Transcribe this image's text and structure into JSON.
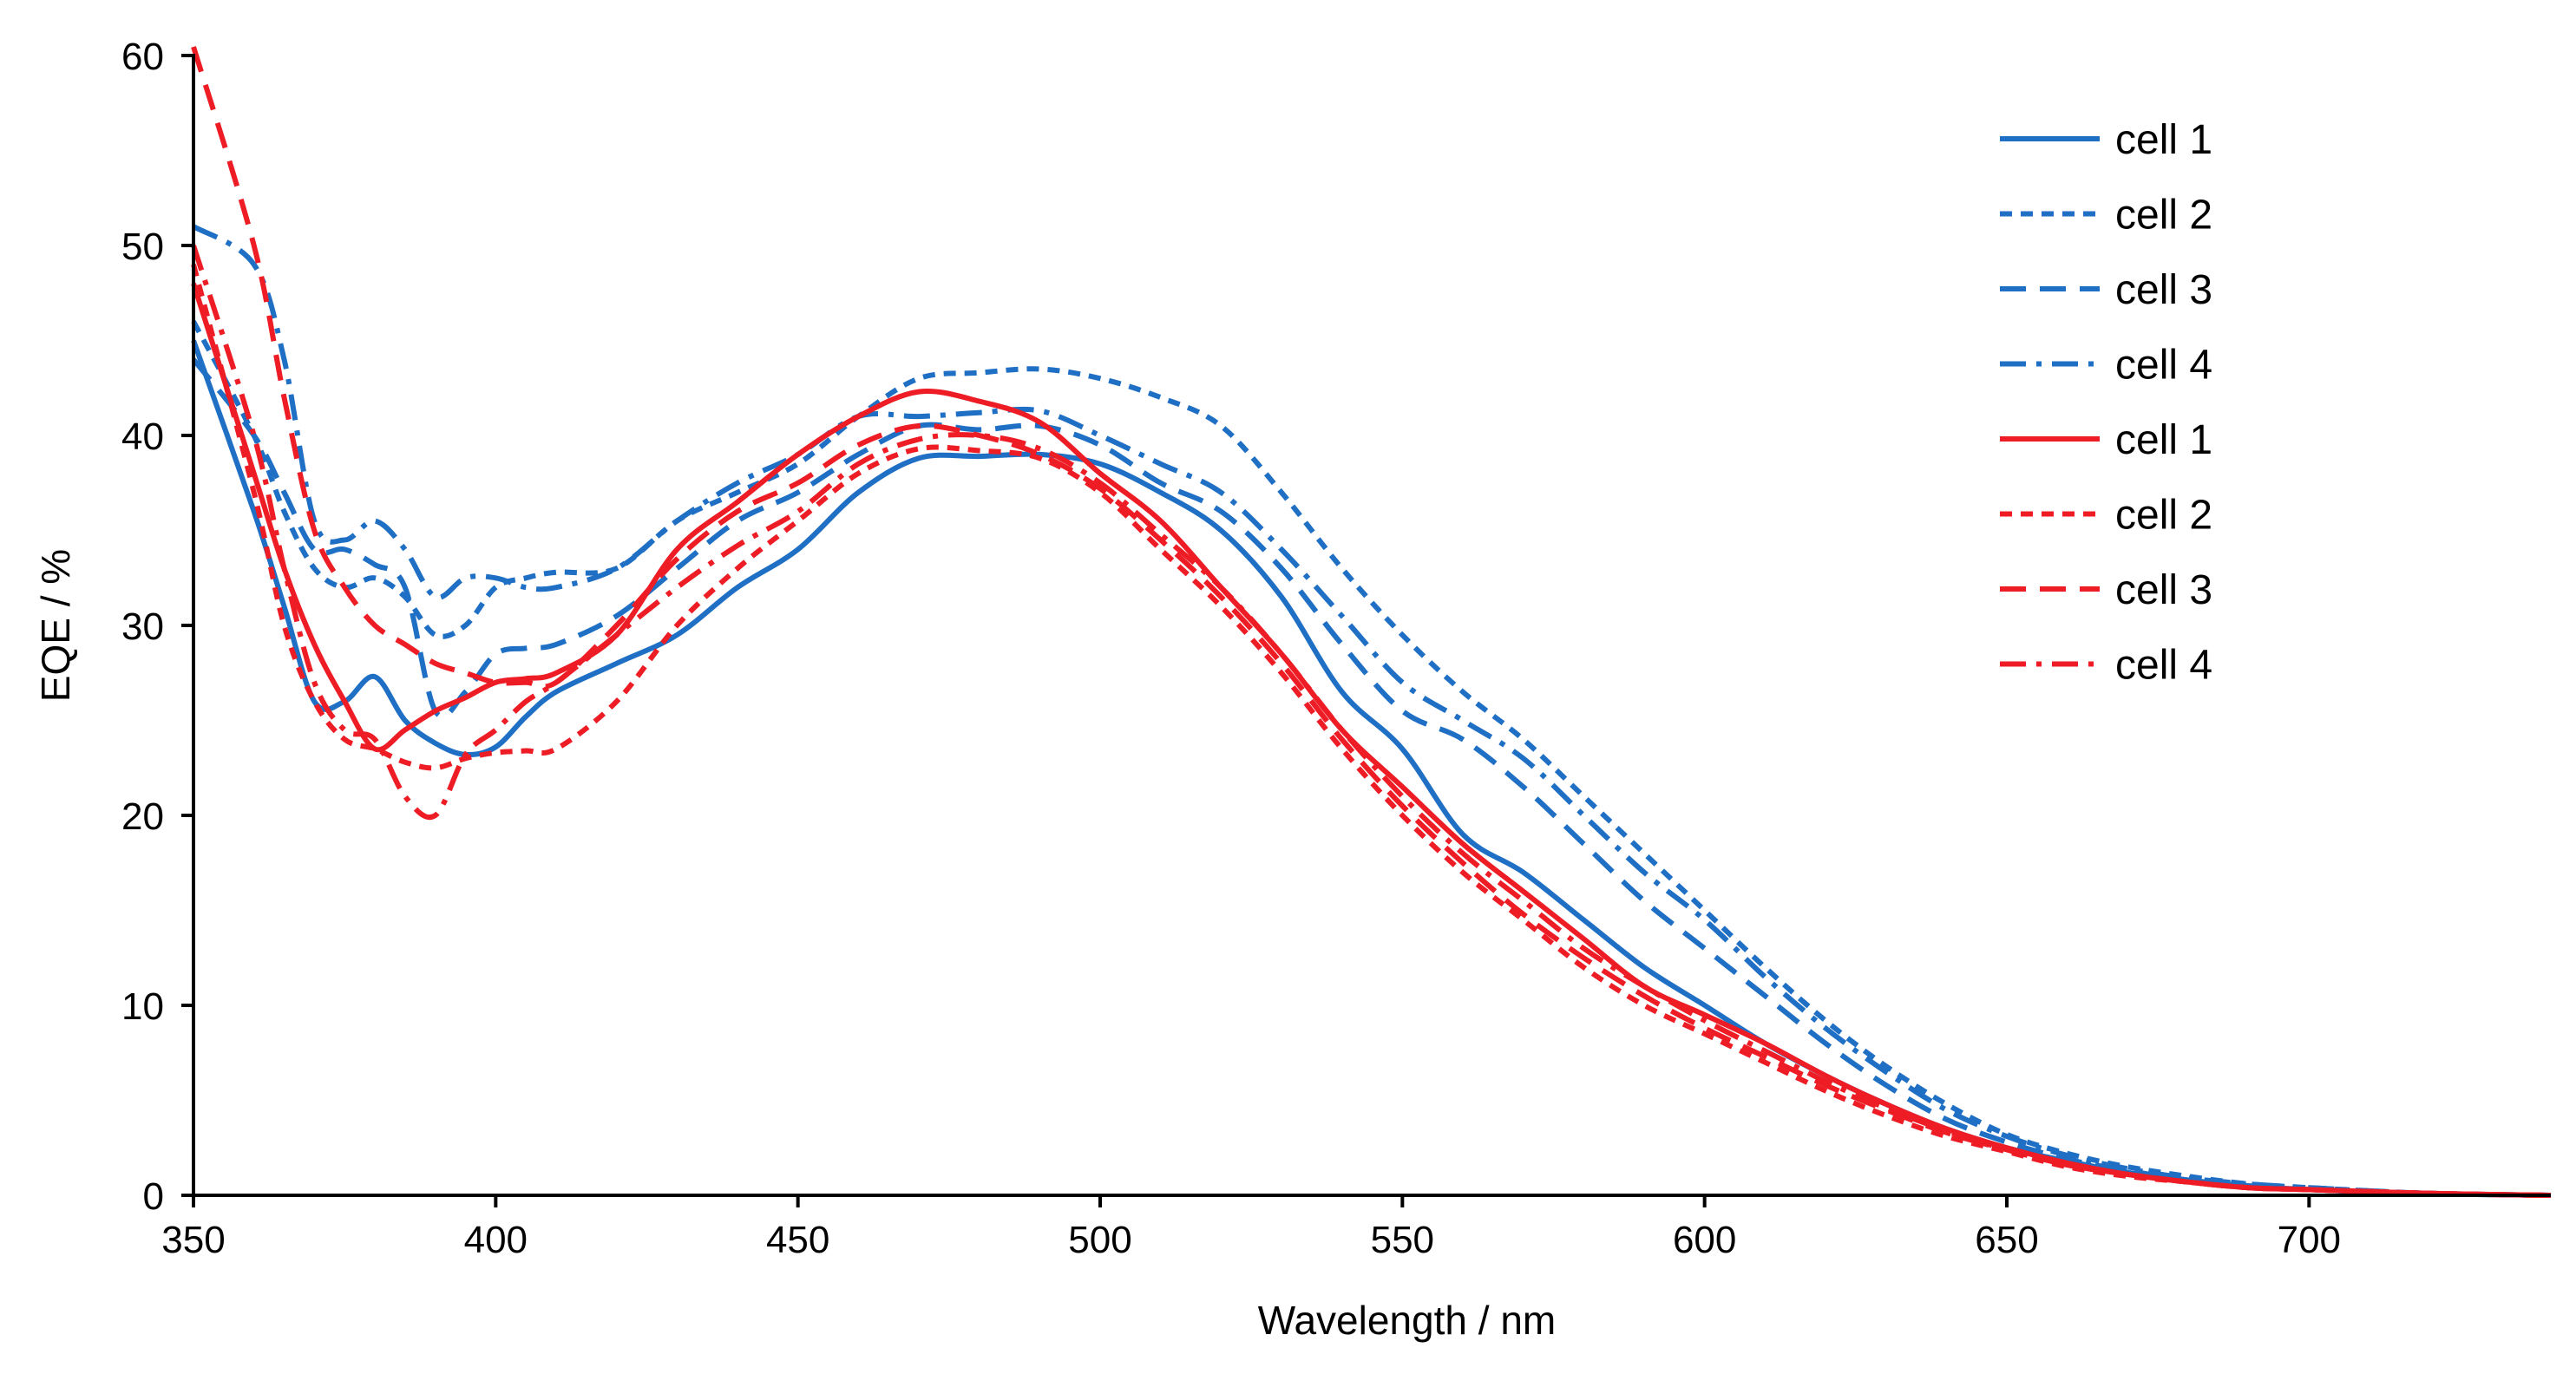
{
  "chart_data": {
    "type": "line",
    "title": "",
    "xlabel": "Wavelength / nm",
    "ylabel": "EQE / %",
    "xlim": [
      350,
      740
    ],
    "ylim": [
      0,
      60
    ],
    "x_ticks": [
      "350",
      "400",
      "450",
      "500",
      "550",
      "600",
      "650",
      "700"
    ],
    "y_ticks": [
      "0",
      "10",
      "20",
      "30",
      "40",
      "50",
      "60"
    ],
    "grid": false,
    "legend_position": "top-right",
    "colors": {
      "blue": "#1f6fc5",
      "red": "#ee1c25"
    },
    "series": [
      {
        "name": "cell 1",
        "color": "#1f6fc5",
        "dash": "solid",
        "x": [
          350,
          360,
          365,
          370,
          375,
          380,
          385,
          390,
          395,
          400,
          405,
          410,
          420,
          430,
          440,
          450,
          460,
          470,
          480,
          490,
          500,
          510,
          520,
          530,
          540,
          550,
          560,
          570,
          580,
          590,
          600,
          610,
          620,
          630,
          640,
          650,
          660,
          670,
          680,
          690,
          700,
          720,
          740
        ],
        "y": [
          45,
          36,
          31,
          26,
          26,
          27.3,
          25,
          23.8,
          23.2,
          23.6,
          25.2,
          26.5,
          28,
          29.5,
          32,
          34,
          37,
          38.8,
          38.9,
          39,
          38.5,
          37,
          35,
          31.5,
          26.5,
          23.5,
          19,
          17,
          14.5,
          12,
          10,
          8,
          6.3,
          4.8,
          3.5,
          2.5,
          1.8,
          1.2,
          0.8,
          0.5,
          0.3,
          0.1,
          0
        ]
      },
      {
        "name": "cell 2",
        "color": "#1f6fc5",
        "dash": "short-dash",
        "x": [
          350,
          360,
          365,
          370,
          375,
          380,
          385,
          390,
          395,
          400,
          405,
          410,
          420,
          430,
          440,
          450,
          460,
          470,
          480,
          490,
          500,
          510,
          520,
          530,
          540,
          550,
          560,
          570,
          580,
          590,
          600,
          610,
          620,
          630,
          640,
          650,
          660,
          670,
          680,
          690,
          700,
          720,
          740
        ],
        "y": [
          46,
          40,
          36,
          33,
          32,
          32.5,
          31.5,
          29.5,
          30,
          32,
          32.5,
          32.8,
          33,
          35.5,
          37,
          38.5,
          41,
          43,
          43.3,
          43.5,
          43,
          42,
          40.5,
          37,
          33,
          29.5,
          26.5,
          24,
          21,
          18,
          15,
          12,
          9.2,
          6.8,
          4.8,
          3.2,
          2.2,
          1.5,
          1,
          0.6,
          0.4,
          0.1,
          0
        ]
      },
      {
        "name": "cell 3",
        "color": "#1f6fc5",
        "dash": "long-dash",
        "x": [
          350,
          360,
          365,
          370,
          375,
          380,
          385,
          390,
          395,
          400,
          405,
          410,
          420,
          430,
          440,
          450,
          460,
          470,
          480,
          490,
          500,
          510,
          520,
          530,
          540,
          550,
          560,
          570,
          580,
          590,
          600,
          610,
          620,
          630,
          640,
          650,
          660,
          670,
          680,
          690,
          700,
          720,
          740
        ],
        "y": [
          44,
          40,
          37,
          34,
          34,
          33.2,
          32,
          25.5,
          26.5,
          28.5,
          28.8,
          29,
          30.5,
          33,
          35.5,
          37,
          39,
          40.5,
          40.3,
          40.5,
          39.5,
          37.5,
          36,
          33,
          29,
          25.5,
          24,
          21.5,
          18.5,
          15.5,
          13,
          10.5,
          8,
          5.8,
          4,
          2.8,
          1.9,
          1.3,
          0.8,
          0.5,
          0.3,
          0.1,
          0
        ]
      },
      {
        "name": "cell 4",
        "color": "#1f6fc5",
        "dash": "dash-dot",
        "x": [
          350,
          360,
          365,
          370,
          375,
          380,
          385,
          390,
          395,
          400,
          405,
          410,
          420,
          430,
          440,
          450,
          460,
          470,
          480,
          490,
          500,
          510,
          520,
          530,
          540,
          550,
          560,
          570,
          580,
          590,
          600,
          610,
          620,
          630,
          640,
          650,
          660,
          670,
          680,
          690,
          700,
          720,
          740
        ],
        "y": [
          51,
          49,
          44,
          35.5,
          34.5,
          35.5,
          34,
          31.5,
          32.5,
          32.5,
          32,
          32,
          33,
          35.5,
          37.5,
          39,
          41,
          41,
          41.2,
          41.3,
          40,
          38.5,
          37,
          34,
          30.5,
          27,
          25,
          23,
          20,
          17,
          14.5,
          11.5,
          8.8,
          6.5,
          4.5,
          3.1,
          2.1,
          1.4,
          0.9,
          0.6,
          0.4,
          0.1,
          0
        ]
      },
      {
        "name": "cell 1",
        "color": "#ee1c25",
        "dash": "solid",
        "x": [
          350,
          360,
          365,
          370,
          375,
          380,
          385,
          390,
          395,
          400,
          405,
          410,
          420,
          430,
          440,
          450,
          460,
          470,
          480,
          490,
          500,
          510,
          520,
          530,
          540,
          550,
          560,
          570,
          580,
          590,
          600,
          610,
          620,
          630,
          640,
          650,
          660,
          670,
          680,
          690,
          700,
          720,
          740
        ],
        "y": [
          48,
          38,
          33,
          29,
          26,
          23.5,
          24.5,
          25.5,
          26.2,
          27,
          27.2,
          27.5,
          29.5,
          34,
          36.5,
          39,
          41,
          42.3,
          41.8,
          40.7,
          38,
          35.5,
          32,
          28.5,
          24.5,
          21.5,
          18.5,
          16,
          13.5,
          11,
          9.5,
          8,
          6.3,
          4.8,
          3.5,
          2.5,
          1.7,
          1.1,
          0.7,
          0.4,
          0.3,
          0.1,
          0
        ]
      },
      {
        "name": "cell 2",
        "color": "#ee1c25",
        "dash": "short-dash",
        "x": [
          350,
          360,
          365,
          370,
          375,
          380,
          385,
          390,
          395,
          400,
          405,
          410,
          420,
          430,
          440,
          450,
          460,
          470,
          480,
          490,
          500,
          510,
          520,
          530,
          540,
          550,
          560,
          570,
          580,
          590,
          600,
          610,
          620,
          630,
          640,
          650,
          660,
          670,
          680,
          690,
          700,
          720,
          740
        ],
        "y": [
          49,
          37,
          30,
          26,
          24,
          23.5,
          22.8,
          22.5,
          23,
          23.3,
          23.4,
          23.5,
          26,
          30,
          33,
          35.5,
          38,
          39.3,
          39.2,
          38.8,
          37,
          34,
          31,
          27.5,
          23.5,
          20,
          17,
          14.5,
          12,
          10,
          8.5,
          7,
          5.5,
          4.2,
          3.1,
          2.3,
          1.5,
          1,
          0.7,
          0.4,
          0.3,
          0.1,
          0
        ]
      },
      {
        "name": "cell 3",
        "color": "#ee1c25",
        "dash": "long-dash",
        "x": [
          350,
          360,
          365,
          370,
          375,
          380,
          385,
          390,
          395,
          400,
          405,
          410,
          420,
          430,
          440,
          450,
          460,
          470,
          480,
          490,
          500,
          510,
          520,
          530,
          540,
          550,
          560,
          570,
          580,
          590,
          600,
          610,
          620,
          630,
          640,
          650,
          660,
          670,
          680,
          690,
          700,
          720,
          740
        ],
        "y": [
          61,
          50,
          42,
          35,
          32,
          30,
          29,
          28,
          27.5,
          27,
          27,
          27,
          30,
          33.5,
          36,
          37.5,
          39.5,
          40.5,
          40,
          39,
          37.2,
          34.5,
          31.5,
          28,
          24,
          20.5,
          17.5,
          14.8,
          12.5,
          10.5,
          8.8,
          7.3,
          5.8,
          4.5,
          3.3,
          2.4,
          1.6,
          1.1,
          0.7,
          0.4,
          0.3,
          0.1,
          0
        ]
      },
      {
        "name": "cell 4",
        "color": "#ee1c25",
        "dash": "dash-dot",
        "x": [
          350,
          360,
          365,
          370,
          375,
          380,
          385,
          390,
          395,
          400,
          405,
          410,
          420,
          430,
          440,
          450,
          460,
          470,
          480,
          490,
          500,
          510,
          520,
          530,
          540,
          550,
          560,
          570,
          580,
          590,
          600,
          610,
          620,
          630,
          640,
          650,
          660,
          670,
          680,
          690,
          700,
          720,
          740
        ],
        "y": [
          50,
          40,
          33,
          27,
          24.5,
          24,
          21,
          20,
          23.2,
          24.5,
          26,
          27,
          29.5,
          32,
          34.2,
          36,
          38.5,
          39.8,
          40,
          39.3,
          37.5,
          34.8,
          32,
          28.5,
          24.5,
          21,
          18,
          15.5,
          13,
          11,
          9.2,
          7.6,
          6,
          4.6,
          3.4,
          2.4,
          1.6,
          1.1,
          0.7,
          0.4,
          0.3,
          0.1,
          0
        ]
      }
    ]
  }
}
